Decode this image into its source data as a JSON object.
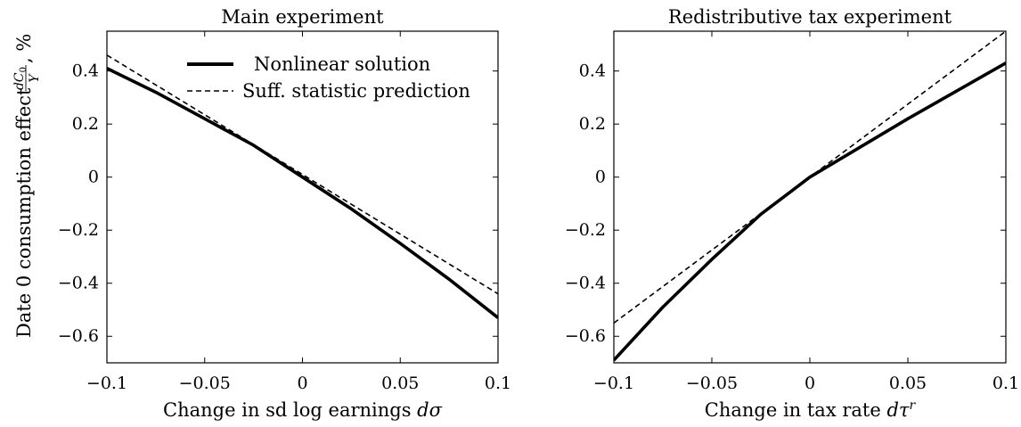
{
  "chart_data": [
    {
      "type": "line",
      "title": "Main experiment",
      "xlabel": "Change in sd log earnings dσ",
      "ylabel": "Date 0 consumption effect dC0/Y, %",
      "xlim": [
        -0.1,
        0.1
      ],
      "ylim": [
        -0.7,
        0.55
      ],
      "xticks": [
        -0.1,
        -0.05,
        0,
        0.05,
        0.1
      ],
      "xtick_labels": [
        "−0.1",
        "−0.05",
        "0",
        "0.05",
        "0.1"
      ],
      "yticks": [
        -0.6,
        -0.4,
        -0.2,
        0,
        0.2,
        0.4
      ],
      "ytick_labels": [
        "−0.6",
        "−0.4",
        "−0.2",
        "0",
        "0.2",
        "0.4"
      ],
      "legend": {
        "position": "top-right"
      },
      "series": [
        {
          "name": "Nonlinear solution",
          "style": "solid",
          "color": "#000000",
          "x": [
            -0.1,
            -0.075,
            -0.05,
            -0.025,
            0,
            0.025,
            0.05,
            0.075,
            0.1
          ],
          "y": [
            0.41,
            0.32,
            0.22,
            0.12,
            0.0,
            -0.12,
            -0.25,
            -0.385,
            -0.53
          ]
        },
        {
          "name": "Suff. statistic prediction",
          "style": "dashed",
          "color": "#000000",
          "x": [
            -0.1,
            0.1
          ],
          "y": [
            0.46,
            -0.44
          ]
        }
      ]
    },
    {
      "type": "line",
      "title": "Redistributive tax experiment",
      "xlabel": "Change in tax rate dτ^r",
      "ylabel": "",
      "xlim": [
        -0.1,
        0.1
      ],
      "ylim": [
        -0.7,
        0.55
      ],
      "xticks": [
        -0.1,
        -0.05,
        0,
        0.05,
        0.1
      ],
      "xtick_labels": [
        "−0.1",
        "−0.05",
        "0",
        "0.05",
        "0.1"
      ],
      "yticks": [
        -0.6,
        -0.4,
        -0.2,
        0,
        0.2,
        0.4
      ],
      "ytick_labels": [
        "−0.6",
        "−0.4",
        "−0.2",
        "0",
        "0.2",
        "0.4"
      ],
      "series": [
        {
          "name": "Nonlinear solution",
          "style": "solid",
          "color": "#000000",
          "x": [
            -0.1,
            -0.075,
            -0.05,
            -0.025,
            0,
            0.025,
            0.05,
            0.075,
            0.1
          ],
          "y": [
            -0.69,
            -0.49,
            -0.31,
            -0.14,
            0.0,
            0.11,
            0.22,
            0.325,
            0.43
          ]
        },
        {
          "name": "Suff. statistic prediction",
          "style": "dashed",
          "color": "#000000",
          "x": [
            -0.1,
            0.1
          ],
          "y": [
            -0.55,
            0.55
          ]
        }
      ]
    }
  ]
}
